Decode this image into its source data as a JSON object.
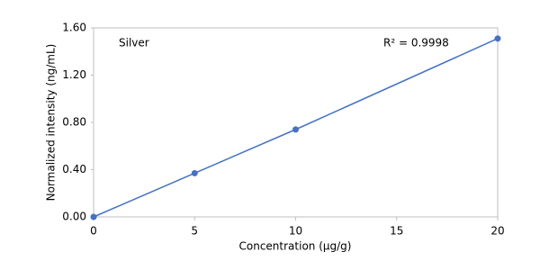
{
  "chart_data": {
    "type": "scatter",
    "x_label": "Concentration (μg/g)",
    "y_label": "Normalized intensity (ng/mL)",
    "annotations": [
      "Silver",
      "R² = 0.9998"
    ],
    "x": [
      0,
      5,
      10,
      20
    ],
    "series": [
      {
        "color": "#4472c4",
        "values": [
          0,
          0.37,
          0.74,
          1.51
        ]
      }
    ],
    "xlim": [
      0,
      20
    ],
    "xticks": [
      0,
      5,
      10,
      15,
      20
    ],
    "ylim": [
      0,
      1.6
    ],
    "yticks": [
      {
        "value": 0,
        "label": "0.00"
      },
      {
        "value": 0.4,
        "label": "0.40"
      },
      {
        "value": 0.8,
        "label": "0.80"
      },
      {
        "value": 1.2,
        "label": "1.20"
      },
      {
        "value": 1.6,
        "label": "1.60"
      }
    ],
    "connect": true,
    "grid": false
  }
}
